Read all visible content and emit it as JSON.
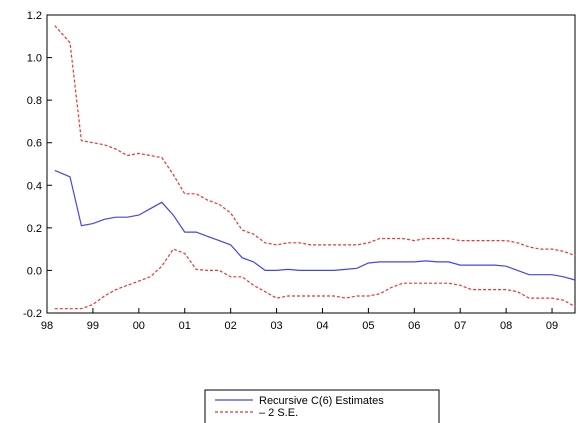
{
  "chart_data": {
    "type": "line",
    "title": "",
    "xlabel": "",
    "ylabel": "",
    "xlim": [
      1998.0,
      2009.5
    ],
    "ylim": [
      -0.2,
      1.2
    ],
    "y_ticks": [
      -0.2,
      0.0,
      0.2,
      0.4,
      0.6,
      0.8,
      1.0,
      1.2
    ],
    "y_tick_labels": [
      "-0.2",
      "0.0",
      "0.2",
      "0.4",
      "0.6",
      "0.8",
      "1.0",
      "1.2"
    ],
    "x_ticks": [
      1998.0,
      1999.0,
      2000.0,
      2001.0,
      2002.0,
      2003.0,
      2004.0,
      2005.0,
      2006.0,
      2007.0,
      2008.0,
      2009.0
    ],
    "x_tick_labels": [
      "98",
      "99",
      "00",
      "01",
      "02",
      "03",
      "04",
      "05",
      "06",
      "07",
      "08",
      "09"
    ],
    "grid": false,
    "legend_position": "bottom-center",
    "x": [
      1998.17,
      1998.5,
      1998.75,
      1999.0,
      1999.25,
      1999.5,
      1999.75,
      2000.0,
      2000.25,
      2000.5,
      2000.75,
      2001.0,
      2001.25,
      2001.5,
      2001.75,
      2002.0,
      2002.25,
      2002.5,
      2002.75,
      2003.0,
      2003.25,
      2003.5,
      2003.75,
      2004.0,
      2004.25,
      2004.5,
      2004.75,
      2005.0,
      2005.25,
      2005.5,
      2005.75,
      2006.0,
      2006.25,
      2006.5,
      2006.75,
      2007.0,
      2007.25,
      2007.5,
      2007.75,
      2008.0,
      2008.25,
      2008.5,
      2008.75,
      2009.0,
      2009.25,
      2009.5
    ],
    "series": [
      {
        "name": "Recursive C(6) Estimates",
        "color": "#4444ee",
        "dash": "solid",
        "values": [
          0.47,
          0.44,
          0.21,
          0.22,
          0.24,
          0.25,
          0.25,
          0.26,
          0.29,
          0.32,
          0.26,
          0.18,
          0.18,
          0.16,
          0.14,
          0.12,
          0.06,
          0.04,
          0.0,
          0.0,
          0.005,
          0.0,
          0.0,
          0.0,
          0.0,
          0.005,
          0.01,
          0.035,
          0.04,
          0.04,
          0.04,
          0.04,
          0.045,
          0.04,
          0.04,
          0.025,
          0.025,
          0.025,
          0.025,
          0.02,
          0.0,
          -0.02,
          -0.02,
          -0.02,
          -0.03,
          -0.045
        ]
      },
      {
        "name": "± 2 S.E.",
        "color": "#ee3333",
        "dash": "dashed",
        "values": [
          1.15,
          1.07,
          0.61,
          0.6,
          0.59,
          0.57,
          0.54,
          0.55,
          0.54,
          0.53,
          0.45,
          0.36,
          0.36,
          0.33,
          0.31,
          0.27,
          0.19,
          0.17,
          0.13,
          0.12,
          0.13,
          0.13,
          0.12,
          0.12,
          0.12,
          0.12,
          0.12,
          0.13,
          0.15,
          0.15,
          0.15,
          0.14,
          0.15,
          0.15,
          0.15,
          0.14,
          0.14,
          0.14,
          0.14,
          0.14,
          0.13,
          0.11,
          0.1,
          0.1,
          0.09,
          0.07
        ]
      },
      {
        "name": "± 2 S.E. (lower)",
        "color": "#ee3333",
        "dash": "dashed",
        "values": [
          -0.18,
          -0.18,
          -0.18,
          -0.16,
          -0.12,
          -0.09,
          -0.07,
          -0.05,
          -0.03,
          0.02,
          0.1,
          0.08,
          0.005,
          0.0,
          0.0,
          -0.03,
          -0.03,
          -0.07,
          -0.1,
          -0.13,
          -0.12,
          -0.12,
          -0.12,
          -0.12,
          -0.12,
          -0.13,
          -0.12,
          -0.12,
          -0.11,
          -0.08,
          -0.06,
          -0.06,
          -0.06,
          -0.06,
          -0.06,
          -0.07,
          -0.09,
          -0.09,
          -0.09,
          -0.09,
          -0.1,
          -0.13,
          -0.13,
          -0.13,
          -0.14,
          -0.17
        ]
      }
    ],
    "legend": [
      {
        "label": "Recursive C(6) Estimates",
        "color": "#4444ee",
        "dash": "solid"
      },
      {
        "label": "– 2 S.E.",
        "color": "#ee3333",
        "dash": "dashed"
      }
    ]
  }
}
